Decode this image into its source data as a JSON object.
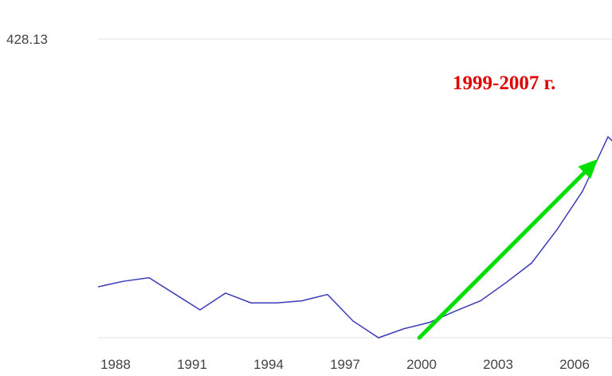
{
  "chart_data": {
    "type": "line",
    "title": "",
    "xlabel": "",
    "ylabel": "",
    "x_ticks": [
      "1988",
      "1991",
      "1994",
      "1997",
      "2000",
      "2003",
      "2006"
    ],
    "y_ticks": [
      "428.13"
    ],
    "ylim": [
      0,
      428.13
    ],
    "xlim": [
      1987,
      2007.2
    ],
    "grid": true,
    "series": [
      {
        "color": "#3a3ab8",
        "x": [
          1987,
          1988,
          1989,
          1990,
          1991,
          1992,
          1993,
          1994,
          1995,
          1996,
          1997,
          1998,
          1999,
          2000,
          2001,
          2002,
          2003,
          2004,
          2005,
          2006,
          2007,
          2007.2
        ],
        "values": [
          73,
          81,
          86,
          63,
          40,
          64,
          50,
          50,
          53,
          62,
          24,
          0,
          13,
          22,
          38,
          53,
          79,
          107,
          155,
          210,
          288,
          281
        ]
      }
    ],
    "annotations": [
      {
        "text": "1999-2007 г.",
        "color": "#e00000"
      },
      {
        "type": "arrow",
        "from": [
          1999.6,
          0
        ],
        "to": [
          2006.6,
          256
        ],
        "color": "#00e000"
      }
    ]
  }
}
